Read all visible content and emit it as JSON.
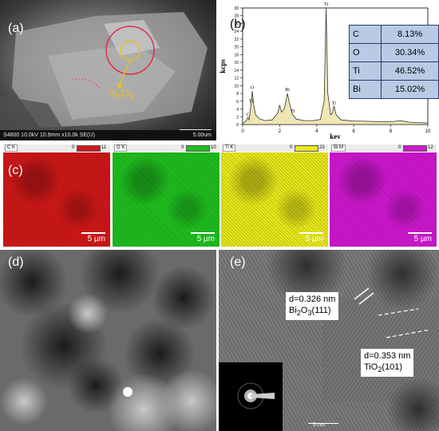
{
  "figure": {
    "labels": {
      "a": "(a)",
      "b": "(b)",
      "c": "(c)",
      "d": "(d)",
      "e": "(e)"
    }
  },
  "sem": {
    "annotation_main": "Bi",
    "annotation_sub": "2",
    "annotation_mid": "O",
    "annotation_sub2": "3",
    "info_bar": "S4800 10.0kV 10.9mm x10.0k SE(U)",
    "scale_label": "5.00um"
  },
  "eds": {
    "y_axis_label": "kcps",
    "x_axis_label": "kev",
    "y_ticks": [
      "0",
      "2",
      "4",
      "6",
      "8",
      "10",
      "12",
      "14",
      "16",
      "18",
      "20",
      "22",
      "24",
      "26",
      "28",
      "30"
    ],
    "x_ticks": [
      "0",
      "2",
      "4",
      "6",
      "8",
      "10"
    ],
    "peaks": [
      {
        "label": "C",
        "x": 0.28,
        "y": 1.5
      },
      {
        "label": "Ti",
        "x": 0.45,
        "y": 5.0
      },
      {
        "label": "O",
        "x": 0.52,
        "y": 8.5
      },
      {
        "label": "Bi",
        "x": 2.42,
        "y": 8.0
      },
      {
        "label": "Ti",
        "x": 2.7,
        "y": 2.5
      },
      {
        "label": "Ti",
        "x": 4.51,
        "y": 30.0
      },
      {
        "label": "Ti",
        "x": 4.93,
        "y": 4.5
      }
    ],
    "spectrum": [
      [
        0.0,
        0.2
      ],
      [
        0.2,
        1.0
      ],
      [
        0.28,
        1.8
      ],
      [
        0.35,
        1.2
      ],
      [
        0.45,
        5.0
      ],
      [
        0.52,
        8.6
      ],
      [
        0.6,
        5.0
      ],
      [
        0.7,
        2.5
      ],
      [
        0.9,
        1.5
      ],
      [
        1.2,
        1.0
      ],
      [
        1.6,
        1.2
      ],
      [
        1.9,
        3.0
      ],
      [
        2.0,
        5.0
      ],
      [
        2.1,
        3.2
      ],
      [
        2.25,
        4.0
      ],
      [
        2.42,
        8.0
      ],
      [
        2.55,
        5.0
      ],
      [
        2.7,
        2.5
      ],
      [
        2.9,
        1.4
      ],
      [
        3.3,
        1.0
      ],
      [
        3.8,
        1.0
      ],
      [
        4.2,
        1.3
      ],
      [
        4.4,
        6.0
      ],
      [
        4.51,
        30.0
      ],
      [
        4.6,
        8.0
      ],
      [
        4.75,
        2.5
      ],
      [
        4.85,
        3.0
      ],
      [
        4.93,
        4.8
      ],
      [
        5.05,
        2.5
      ],
      [
        5.3,
        1.2
      ],
      [
        6.0,
        0.9
      ],
      [
        7.0,
        0.8
      ],
      [
        8.0,
        0.7
      ],
      [
        8.5,
        1.0
      ],
      [
        9.0,
        0.6
      ],
      [
        10.0,
        0.4
      ]
    ],
    "table": [
      {
        "element": "C",
        "value": "8.13%"
      },
      {
        "element": "O",
        "value": "30.34%"
      },
      {
        "element": "Ti",
        "value": "46.52%"
      },
      {
        "element": "Bi",
        "value": "15.02%"
      }
    ]
  },
  "maps": [
    {
      "name": "C K",
      "min": "0",
      "max": "11",
      "color": "#d01818",
      "scale": "5 µm"
    },
    {
      "name": "O K",
      "min": "0",
      "max": "10",
      "color": "#1fbf1f",
      "scale": "5 µm"
    },
    {
      "name": "Ti K",
      "min": "0",
      "max": "23",
      "color": "#e8e81a",
      "scale": "5 µm"
    },
    {
      "name": "Bi M",
      "min": "0",
      "max": "12",
      "color": "#d018d0",
      "scale": "5 µm"
    }
  ],
  "hrtem": {
    "callout1_line1": "d=0.326 nm",
    "callout1_line2_a": "Bi",
    "callout1_line2_sub": "2",
    "callout1_line2_b": "O",
    "callout1_line2_sub2": "3",
    "callout1_line2_c": "(111)",
    "callout2_line1": "d=0.353 nm",
    "callout2_line2_a": "TiO",
    "callout2_line2_sub": "2",
    "callout2_line2_c": "(101)",
    "scale_label": "5 nm"
  }
}
